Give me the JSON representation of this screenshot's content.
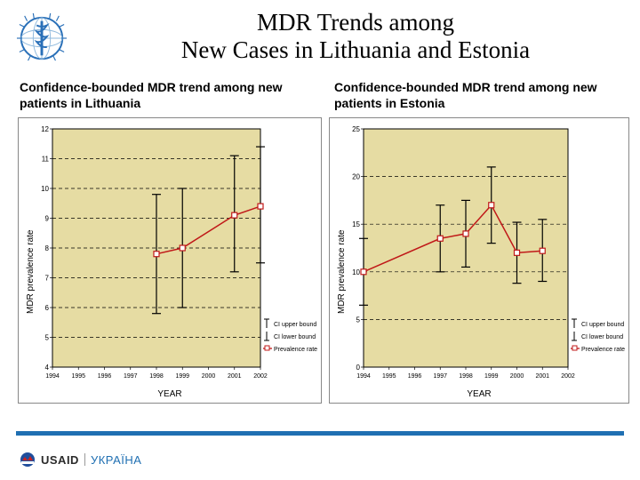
{
  "title": "MDR Trends among\nNew Cases in Lithuania and Estonia",
  "title_fontfamily": "Garamond",
  "title_fontsize": 27,
  "chart_left": {
    "title": "Confidence-bounded MDR trend among new patients in Lithuania",
    "title_fontsize": 14,
    "title_fontweight": "bold",
    "ylabel": "MDR prevalence rate",
    "xlabel": "YEAR",
    "label_fontsize": 10,
    "type": "errorbar-line",
    "x_categories": [
      "1994",
      "1995",
      "1996",
      "1997",
      "1998",
      "1999",
      "2000",
      "2001",
      "2002"
    ],
    "xlim": [
      0,
      8
    ],
    "ylim": [
      4,
      12
    ],
    "ytick_step": 1,
    "data_x_indices": [
      4,
      5,
      7,
      8
    ],
    "values": [
      7.8,
      8.0,
      9.1,
      9.4
    ],
    "ci_lower": [
      5.8,
      6.0,
      7.2,
      7.5
    ],
    "ci_upper": [
      9.8,
      10.0,
      11.1,
      11.4
    ],
    "line_color": "#c01818",
    "marker_style": "square-open",
    "marker_size": 6,
    "ci_bar_color": "#000000",
    "grid_dashed": true,
    "grid_color": "#000000",
    "plot_background": "#e6dca3",
    "outer_background": "#ffffff",
    "legend": [
      "CI upper bound",
      "CI lower bound",
      "Prevalence rate"
    ]
  },
  "chart_right": {
    "title": "Confidence-bounded MDR trend among new patients in Estonia",
    "title_fontsize": 14,
    "title_fontweight": "bold",
    "ylabel": "MDR prevalence rate",
    "xlabel": "YEAR",
    "label_fontsize": 10,
    "type": "errorbar-line",
    "x_categories": [
      "1994",
      "1995",
      "1996",
      "1997",
      "1998",
      "1999",
      "2000",
      "2001",
      "2002"
    ],
    "xlim": [
      0,
      8
    ],
    "ylim": [
      0,
      25
    ],
    "ytick_step": 5,
    "data_x_indices": [
      0,
      3,
      4,
      5,
      6,
      7
    ],
    "values": [
      10.0,
      13.5,
      14.0,
      17.0,
      12.0,
      12.2
    ],
    "ci_lower": [
      6.5,
      10.0,
      10.5,
      13.0,
      8.8,
      9.0
    ],
    "ci_upper": [
      13.5,
      17.0,
      17.5,
      21.0,
      15.2,
      15.5
    ],
    "line_color": "#c01818",
    "marker_style": "square-open",
    "marker_size": 6,
    "ci_bar_color": "#000000",
    "grid_dashed": true,
    "grid_color": "#000000",
    "plot_background": "#e6dca3",
    "outer_background": "#ffffff",
    "legend": [
      "CI upper bound",
      "CI lower bound",
      "Prevalence rate"
    ]
  },
  "footer": {
    "bar_color": "#1f6fb2",
    "usaid_label": "USAID",
    "ukraine_label": "УКРАЇНА"
  },
  "who_logo_color_primary": "#2a70b8",
  "who_logo_color_light": "#8fb9dd"
}
